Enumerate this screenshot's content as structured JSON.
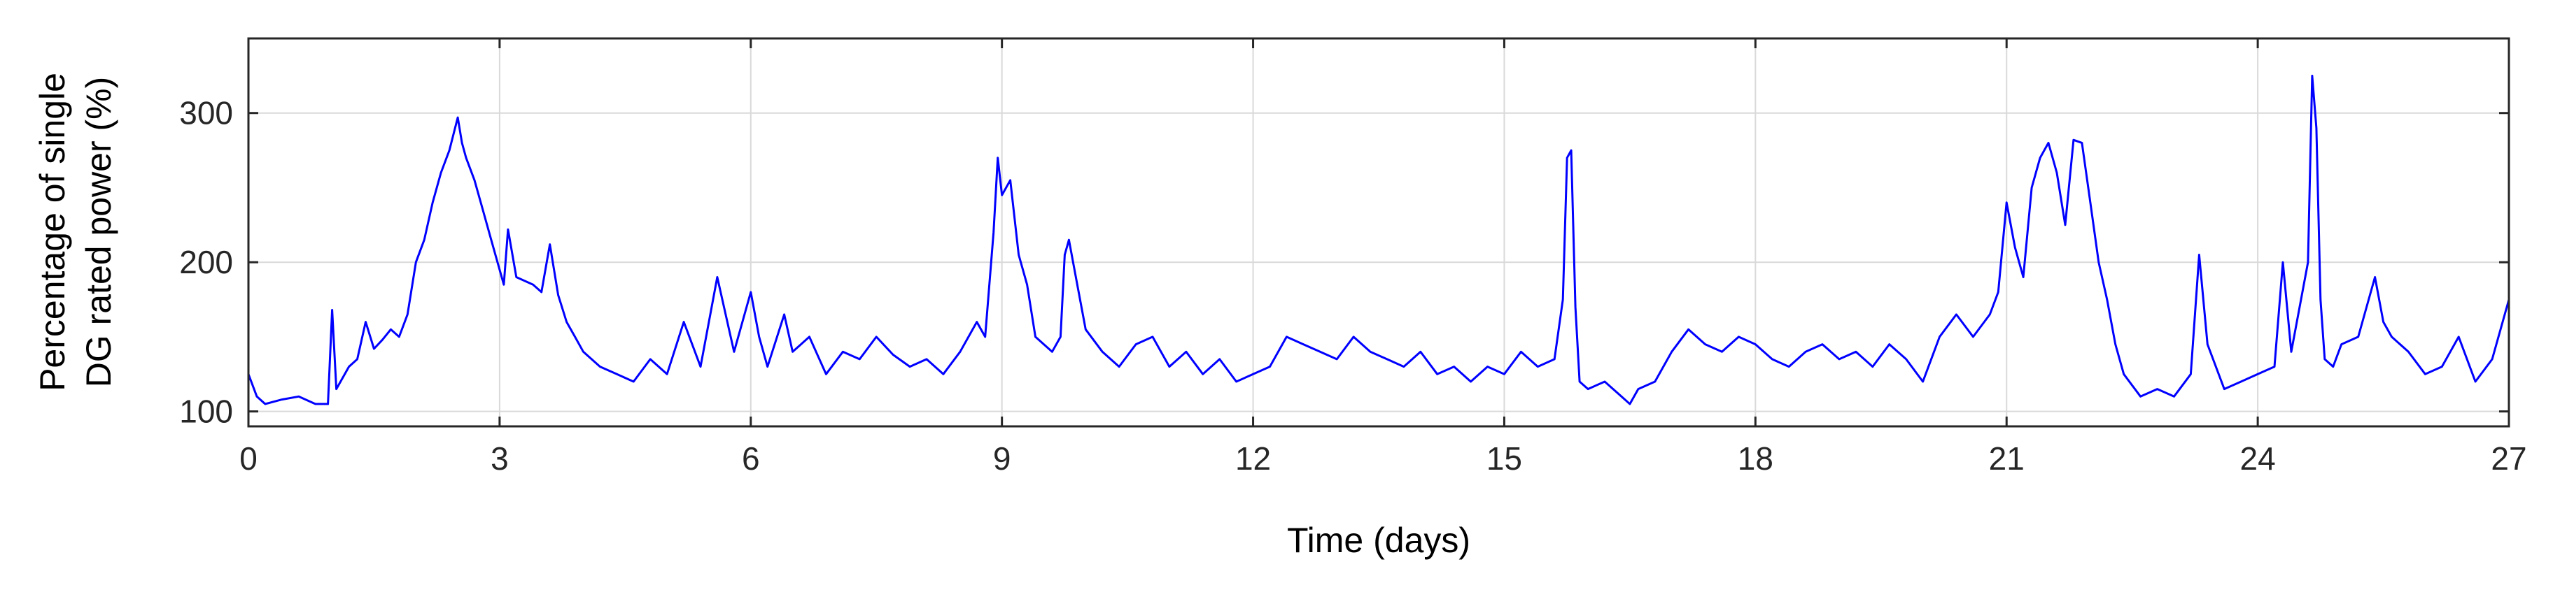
{
  "chart_data": {
    "type": "line",
    "title": "",
    "xlabel": "Time (days)",
    "ylabel_lines": [
      "Percentage of single",
      "DG rated power (%)"
    ],
    "xlim": [
      0,
      27
    ],
    "ylim": [
      90,
      350
    ],
    "x_ticks": [
      0,
      3,
      6,
      9,
      12,
      15,
      18,
      21,
      24,
      27
    ],
    "y_ticks": [
      100,
      200,
      300
    ],
    "x_tick_labels": [
      "0",
      "3",
      "6",
      "9",
      "12",
      "15",
      "18",
      "21",
      "24",
      "27"
    ],
    "y_tick_labels": [
      "100",
      "200",
      "300"
    ],
    "grid": true,
    "series": [
      {
        "color": "#0000ff",
        "x": [
          0.0,
          0.1,
          0.2,
          0.4,
          0.6,
          0.8,
          0.95,
          1.0,
          1.05,
          1.1,
          1.2,
          1.3,
          1.4,
          1.5,
          1.6,
          1.7,
          1.8,
          1.9,
          2.0,
          2.1,
          2.2,
          2.3,
          2.4,
          2.5,
          2.55,
          2.6,
          2.7,
          2.8,
          2.9,
          3.0,
          3.05,
          3.1,
          3.2,
          3.4,
          3.5,
          3.6,
          3.7,
          3.8,
          3.9,
          4.0,
          4.2,
          4.4,
          4.6,
          4.8,
          5.0,
          5.2,
          5.4,
          5.6,
          5.7,
          5.8,
          6.0,
          6.1,
          6.2,
          6.4,
          6.5,
          6.7,
          6.9,
          7.1,
          7.3,
          7.5,
          7.7,
          7.9,
          8.1,
          8.3,
          8.5,
          8.7,
          8.8,
          8.9,
          8.95,
          9.0,
          9.1,
          9.2,
          9.3,
          9.4,
          9.5,
          9.6,
          9.7,
          9.75,
          9.8,
          9.9,
          10.0,
          10.2,
          10.4,
          10.6,
          10.8,
          11.0,
          11.2,
          11.4,
          11.6,
          11.8,
          12.0,
          12.2,
          12.4,
          12.6,
          12.8,
          13.0,
          13.2,
          13.4,
          13.6,
          13.8,
          14.0,
          14.2,
          14.4,
          14.6,
          14.8,
          15.0,
          15.2,
          15.4,
          15.6,
          15.7,
          15.75,
          15.8,
          15.85,
          15.9,
          16.0,
          16.2,
          16.4,
          16.5,
          16.6,
          16.8,
          17.0,
          17.2,
          17.4,
          17.6,
          17.8,
          18.0,
          18.2,
          18.4,
          18.6,
          18.8,
          19.0,
          19.2,
          19.4,
          19.6,
          19.8,
          20.0,
          20.2,
          20.4,
          20.6,
          20.8,
          20.9,
          21.0,
          21.1,
          21.2,
          21.3,
          21.4,
          21.5,
          21.6,
          21.7,
          21.8,
          21.9,
          22.0,
          22.1,
          22.2,
          22.3,
          22.4,
          22.6,
          22.8,
          23.0,
          23.2,
          23.3,
          23.4,
          23.6,
          23.8,
          24.0,
          24.2,
          24.3,
          24.4,
          24.6,
          24.65,
          24.7,
          24.75,
          24.8,
          24.9,
          25.0,
          25.2,
          25.4,
          25.5,
          25.6,
          25.8,
          26.0,
          26.2,
          26.4,
          26.6,
          26.8,
          27.0
        ],
        "y": [
          125,
          110,
          105,
          108,
          110,
          105,
          105,
          168,
          115,
          120,
          130,
          135,
          160,
          142,
          148,
          155,
          150,
          165,
          200,
          215,
          240,
          260,
          275,
          297,
          280,
          270,
          255,
          235,
          215,
          195,
          185,
          222,
          190,
          185,
          180,
          212,
          178,
          160,
          150,
          140,
          130,
          125,
          120,
          135,
          125,
          160,
          130,
          190,
          165,
          140,
          180,
          150,
          130,
          165,
          140,
          150,
          125,
          140,
          135,
          150,
          138,
          130,
          135,
          125,
          140,
          160,
          150,
          220,
          270,
          245,
          255,
          205,
          185,
          150,
          145,
          140,
          150,
          205,
          215,
          185,
          155,
          140,
          130,
          145,
          150,
          130,
          140,
          125,
          135,
          120,
          125,
          130,
          150,
          145,
          140,
          135,
          150,
          140,
          135,
          130,
          140,
          125,
          130,
          120,
          130,
          125,
          140,
          130,
          135,
          175,
          270,
          275,
          170,
          120,
          115,
          120,
          110,
          105,
          115,
          120,
          140,
          155,
          145,
          140,
          150,
          145,
          135,
          130,
          140,
          145,
          135,
          140,
          130,
          145,
          135,
          120,
          150,
          165,
          150,
          165,
          180,
          240,
          210,
          190,
          250,
          270,
          280,
          260,
          225,
          282,
          280,
          240,
          200,
          175,
          145,
          125,
          110,
          115,
          110,
          125,
          205,
          145,
          115,
          120,
          125,
          130,
          200,
          140,
          200,
          325,
          290,
          175,
          135,
          130,
          145,
          150,
          190,
          160,
          150,
          140,
          125,
          130,
          150,
          120,
          135,
          175
        ]
      }
    ]
  }
}
